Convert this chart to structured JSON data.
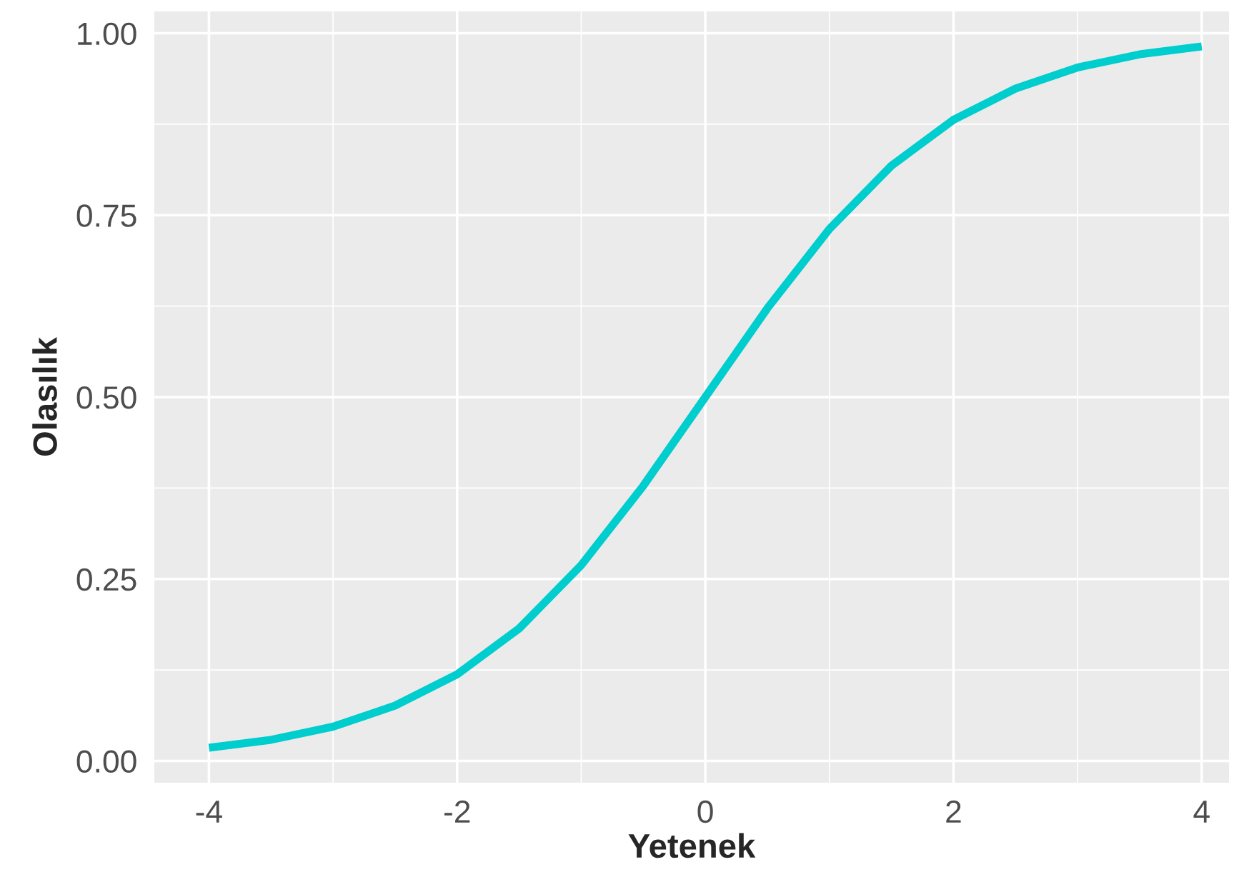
{
  "chart_data": {
    "type": "line",
    "xlabel": "Yetenek",
    "ylabel": "Olasılık",
    "x": [
      -4,
      -3.5,
      -3,
      -2.5,
      -2,
      -1.5,
      -1,
      -0.5,
      0,
      0.5,
      1,
      1.5,
      2,
      2.5,
      3,
      3.5,
      4
    ],
    "series": [
      {
        "color": "#00cdcd",
        "values": [
          0.018,
          0.029,
          0.047,
          0.076,
          0.119,
          0.182,
          0.269,
          0.378,
          0.5,
          0.622,
          0.731,
          0.818,
          0.881,
          0.924,
          0.953,
          0.971,
          0.982
        ]
      }
    ],
    "xlim": [
      -4.44,
      4.22
    ],
    "ylim": [
      -0.03,
      1.03
    ],
    "xticks": [
      {
        "value": -4,
        "label": "-4"
      },
      {
        "value": -2,
        "label": "-2"
      },
      0,
      2,
      4
    ],
    "yticks": [
      {
        "value": 0,
        "label": "0.00"
      },
      {
        "value": 0.25,
        "label": "0.25"
      },
      {
        "value": 0.5,
        "label": "0.50"
      },
      {
        "value": 0.75,
        "label": "0.75"
      },
      {
        "value": 1,
        "label": "1.00"
      }
    ],
    "grid": true,
    "marker": "none",
    "line_style": "solid"
  }
}
